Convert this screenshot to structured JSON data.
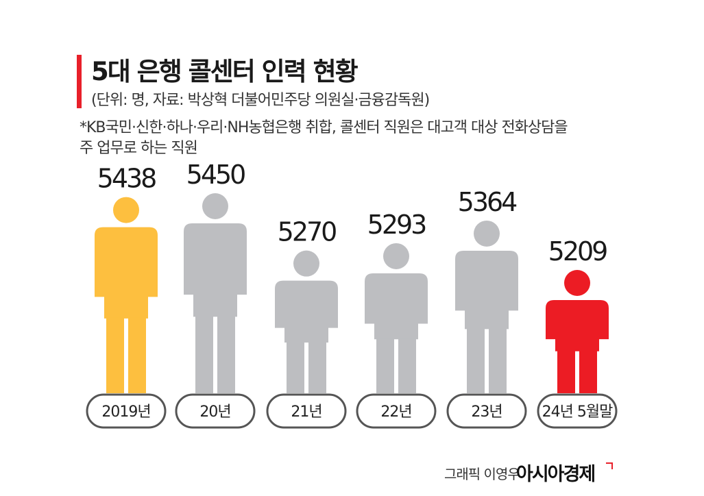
{
  "colors": {
    "accent": "#e8202a",
    "first": "#fdbf3f",
    "middle": "#bdbec1",
    "last": "#ec1c24",
    "pill_border": "#555555"
  },
  "chart_data": {
    "type": "bar",
    "title": "5대 은행 콜센터 인력 현황",
    "subtitle": "(단위: 명, 자료: 박상혁 더불어민주당 의원실·금융감독원)",
    "note_lines": [
      "*KB국민·신한·하나·우리·NH농협은행 취합, 콜센터 직원은 대고객 대상 전화상담을",
      " 주 업무로 하는 직원"
    ],
    "categories": [
      "2019년",
      "20년",
      "21년",
      "22년",
      "23년",
      "24년 5월말"
    ],
    "values": [
      5438,
      5450,
      5270,
      5293,
      5364,
      5209
    ],
    "ylim": [
      5000,
      5460
    ]
  },
  "credit": "그래픽 이영우",
  "brand": "아시아경제"
}
